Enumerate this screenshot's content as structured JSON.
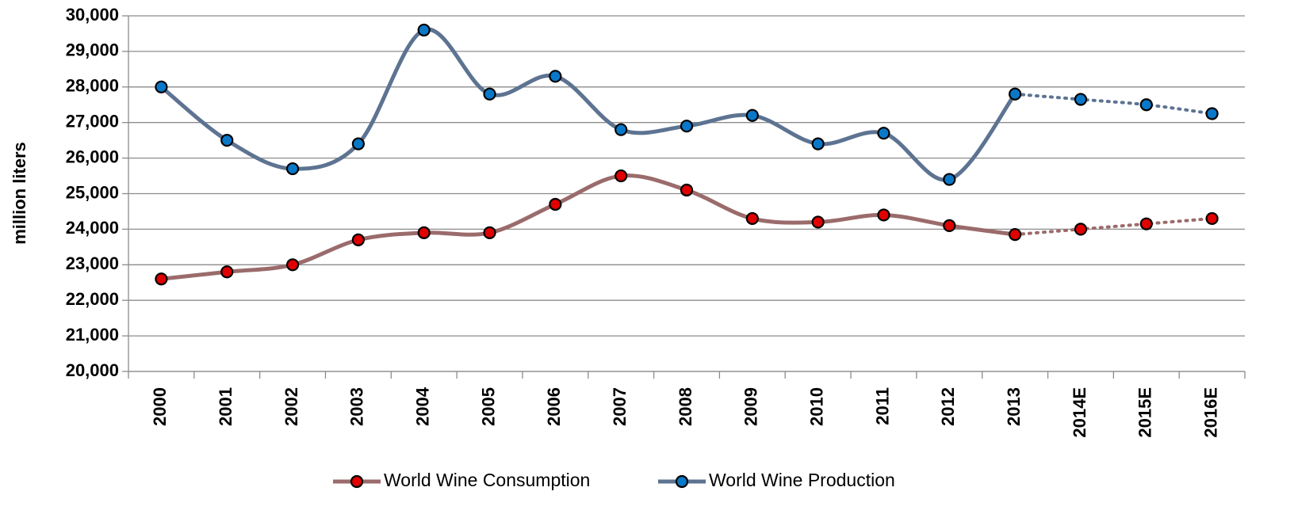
{
  "chart_data": {
    "type": "line",
    "y_label": "million liters",
    "categories": [
      "2000",
      "2001",
      "2002",
      "2003",
      "2004",
      "2005",
      "2006",
      "2007",
      "2008",
      "2009",
      "2010",
      "2011",
      "2012",
      "2013",
      "2014E",
      "2015E",
      "2016E"
    ],
    "series": [
      {
        "name": "World Wine Consumption",
        "color": "#9b6b6b",
        "marker_color": "#e00000",
        "values": [
          22600,
          22800,
          23000,
          23700,
          23900,
          23900,
          24700,
          25500,
          25100,
          24300,
          24200,
          24400,
          24100,
          23850,
          24000,
          24150,
          24300
        ]
      },
      {
        "name": "World Wine Production",
        "color": "#5d7391",
        "marker_color": "#0a78c8",
        "values": [
          28000,
          26500,
          25700,
          26400,
          29600,
          27800,
          28300,
          26800,
          26900,
          27200,
          26400,
          26700,
          25400,
          27800,
          27650,
          27500,
          27250
        ]
      }
    ],
    "ylim": [
      20000,
      30000
    ],
    "yticks": [
      {
        "value": 20000,
        "label": "20,000"
      },
      {
        "value": 21000,
        "label": "21,000"
      },
      {
        "value": 22000,
        "label": "22,000"
      },
      {
        "value": 23000,
        "label": "23,000"
      },
      {
        "value": 24000,
        "label": "24,000"
      },
      {
        "value": 25000,
        "label": "25,000"
      },
      {
        "value": 26000,
        "label": "26,000"
      },
      {
        "value": 27000,
        "label": "27,000"
      },
      {
        "value": 28000,
        "label": "28,000"
      },
      {
        "value": 29000,
        "label": "29,000"
      },
      {
        "value": 30000,
        "label": "30,000"
      }
    ],
    "grid": true,
    "smooth": true,
    "legend": "bottom"
  }
}
